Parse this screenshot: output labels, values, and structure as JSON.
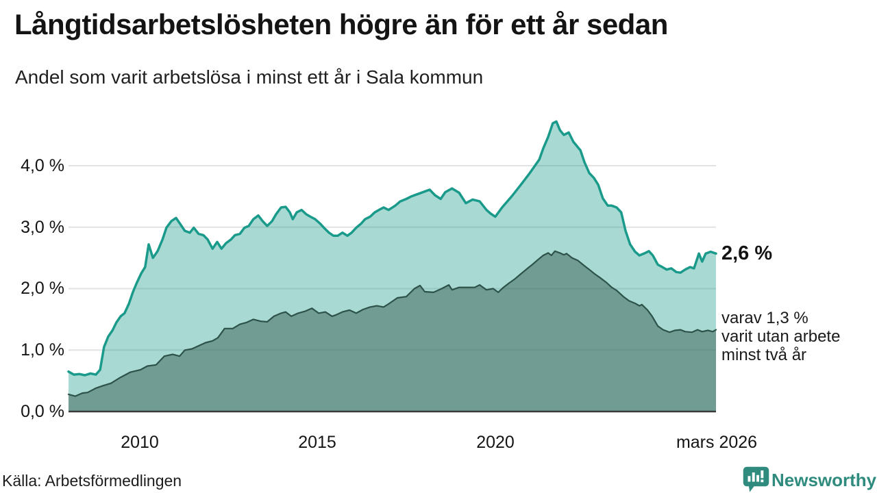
{
  "header": {
    "title": "Långtidsarbetslösheten högre än för ett år sedan",
    "subtitle": "Andel som varit arbetslösa i minst ett år i Sala kommun"
  },
  "colors": {
    "accent_line": "#1a9a8a",
    "accent_fill": "rgba(26,154,138,0.38)",
    "dark_line": "#2d5249",
    "dark_fill": "rgba(45,82,73,0.45)",
    "gridline": "#e2e2e2",
    "axis_line": "#3a3a3a",
    "brand_teal": "#2e8b7e"
  },
  "chart_data": {
    "type": "area",
    "title": "Långtidsarbetslösheten högre än för ett år sedan",
    "subtitle": "Andel som varit arbetslösa i minst ett år i Sala kommun",
    "unit": "%",
    "grid": true,
    "legend": "none",
    "x_range": [
      2008.0,
      2026.25
    ],
    "ylim": [
      0,
      4.9
    ],
    "y_axis": {
      "ticks": [
        {
          "label": "4,0 %",
          "value": 4
        },
        {
          "label": "3,0 %",
          "value": 3
        },
        {
          "label": "2,0 %",
          "value": 2
        },
        {
          "label": "1,0 %",
          "value": 1
        },
        {
          "label": "0,0 %",
          "value": 0
        }
      ]
    },
    "x_axis": {
      "ticks": [
        {
          "label": "2010",
          "x": 2010
        },
        {
          "label": "2015",
          "x": 2015
        },
        {
          "label": "2020",
          "x": 2020
        },
        {
          "label": "mars 2026",
          "x": 2026.25
        }
      ]
    },
    "annotations": {
      "end_value": "2,6 %",
      "sub_lines": [
        "varav 1,3 %",
        "varit utan arbete",
        "minst två år"
      ]
    },
    "series": [
      {
        "name": "Andel arbetslösa minst ett år",
        "stroke": "#1a9a8a",
        "stroke_width": 3.5,
        "fill": "rgba(26,154,138,0.38)",
        "points": [
          [
            2008.0,
            0.65
          ],
          [
            2008.15,
            0.6
          ],
          [
            2008.31,
            0.61
          ],
          [
            2008.46,
            0.59
          ],
          [
            2008.62,
            0.62
          ],
          [
            2008.77,
            0.6
          ],
          [
            2008.89,
            0.68
          ],
          [
            2009.0,
            1.05
          ],
          [
            2009.12,
            1.22
          ],
          [
            2009.24,
            1.32
          ],
          [
            2009.35,
            1.45
          ],
          [
            2009.47,
            1.55
          ],
          [
            2009.58,
            1.6
          ],
          [
            2009.7,
            1.75
          ],
          [
            2009.82,
            1.95
          ],
          [
            2009.93,
            2.1
          ],
          [
            2010.05,
            2.25
          ],
          [
            2010.16,
            2.35
          ],
          [
            2010.26,
            2.72
          ],
          [
            2010.38,
            2.5
          ],
          [
            2010.51,
            2.61
          ],
          [
            2010.65,
            2.8
          ],
          [
            2010.76,
            2.99
          ],
          [
            2010.9,
            3.1
          ],
          [
            2011.03,
            3.15
          ],
          [
            2011.15,
            3.05
          ],
          [
            2011.28,
            2.94
          ],
          [
            2011.42,
            2.91
          ],
          [
            2011.53,
            2.99
          ],
          [
            2011.67,
            2.89
          ],
          [
            2011.8,
            2.87
          ],
          [
            2011.92,
            2.8
          ],
          [
            2012.06,
            2.65
          ],
          [
            2012.19,
            2.76
          ],
          [
            2012.31,
            2.65
          ],
          [
            2012.44,
            2.74
          ],
          [
            2012.58,
            2.8
          ],
          [
            2012.69,
            2.87
          ],
          [
            2012.83,
            2.89
          ],
          [
            2012.96,
            2.99
          ],
          [
            2013.08,
            3.02
          ],
          [
            2013.21,
            3.13
          ],
          [
            2013.35,
            3.19
          ],
          [
            2013.47,
            3.1
          ],
          [
            2013.6,
            3.02
          ],
          [
            2013.74,
            3.1
          ],
          [
            2013.85,
            3.21
          ],
          [
            2013.99,
            3.32
          ],
          [
            2014.12,
            3.33
          ],
          [
            2014.24,
            3.24
          ],
          [
            2014.32,
            3.13
          ],
          [
            2014.43,
            3.24
          ],
          [
            2014.57,
            3.28
          ],
          [
            2014.7,
            3.21
          ],
          [
            2014.82,
            3.17
          ],
          [
            2014.95,
            3.13
          ],
          [
            2015.09,
            3.06
          ],
          [
            2015.2,
            2.99
          ],
          [
            2015.34,
            2.91
          ],
          [
            2015.47,
            2.86
          ],
          [
            2015.59,
            2.86
          ],
          [
            2015.72,
            2.91
          ],
          [
            2015.86,
            2.86
          ],
          [
            2015.98,
            2.91
          ],
          [
            2016.11,
            2.99
          ],
          [
            2016.25,
            3.06
          ],
          [
            2016.36,
            3.13
          ],
          [
            2016.5,
            3.17
          ],
          [
            2016.63,
            3.24
          ],
          [
            2016.75,
            3.28
          ],
          [
            2016.88,
            3.32
          ],
          [
            2017.02,
            3.28
          ],
          [
            2017.21,
            3.35
          ],
          [
            2017.35,
            3.42
          ],
          [
            2017.52,
            3.46
          ],
          [
            2017.66,
            3.5
          ],
          [
            2017.85,
            3.54
          ],
          [
            2018.04,
            3.58
          ],
          [
            2018.18,
            3.61
          ],
          [
            2018.33,
            3.52
          ],
          [
            2018.49,
            3.46
          ],
          [
            2018.62,
            3.57
          ],
          [
            2018.81,
            3.63
          ],
          [
            2019.01,
            3.56
          ],
          [
            2019.2,
            3.39
          ],
          [
            2019.39,
            3.45
          ],
          [
            2019.59,
            3.42
          ],
          [
            2019.78,
            3.28
          ],
          [
            2019.9,
            3.22
          ],
          [
            2020.03,
            3.17
          ],
          [
            2020.22,
            3.32
          ],
          [
            2020.49,
            3.5
          ],
          [
            2020.75,
            3.69
          ],
          [
            2021.0,
            3.88
          ],
          [
            2021.27,
            4.1
          ],
          [
            2021.38,
            4.28
          ],
          [
            2021.52,
            4.47
          ],
          [
            2021.65,
            4.69
          ],
          [
            2021.75,
            4.72
          ],
          [
            2021.85,
            4.58
          ],
          [
            2021.96,
            4.5
          ],
          [
            2022.1,
            4.54
          ],
          [
            2022.23,
            4.39
          ],
          [
            2022.43,
            4.25
          ],
          [
            2022.54,
            4.06
          ],
          [
            2022.68,
            3.88
          ],
          [
            2022.81,
            3.8
          ],
          [
            2022.93,
            3.69
          ],
          [
            2023.06,
            3.47
          ],
          [
            2023.2,
            3.35
          ],
          [
            2023.31,
            3.35
          ],
          [
            2023.45,
            3.32
          ],
          [
            2023.58,
            3.24
          ],
          [
            2023.7,
            2.94
          ],
          [
            2023.83,
            2.72
          ],
          [
            2023.97,
            2.6
          ],
          [
            2024.09,
            2.54
          ],
          [
            2024.22,
            2.57
          ],
          [
            2024.36,
            2.61
          ],
          [
            2024.47,
            2.54
          ],
          [
            2024.61,
            2.39
          ],
          [
            2024.74,
            2.35
          ],
          [
            2024.86,
            2.31
          ],
          [
            2024.99,
            2.33
          ],
          [
            2025.13,
            2.27
          ],
          [
            2025.25,
            2.26
          ],
          [
            2025.38,
            2.31
          ],
          [
            2025.52,
            2.35
          ],
          [
            2025.63,
            2.33
          ],
          [
            2025.77,
            2.57
          ],
          [
            2025.86,
            2.44
          ],
          [
            2025.96,
            2.57
          ],
          [
            2026.1,
            2.6
          ],
          [
            2026.25,
            2.57
          ]
        ]
      },
      {
        "name": "Andel arbetslösa minst två år",
        "stroke": "#2d5249",
        "stroke_width": 2.2,
        "fill": "rgba(45,82,73,0.45)",
        "points": [
          [
            2008.0,
            0.28
          ],
          [
            2008.19,
            0.25
          ],
          [
            2008.39,
            0.3
          ],
          [
            2008.54,
            0.31
          ],
          [
            2008.77,
            0.38
          ],
          [
            2008.97,
            0.42
          ],
          [
            2009.2,
            0.46
          ],
          [
            2009.45,
            0.55
          ],
          [
            2009.74,
            0.64
          ],
          [
            2010.03,
            0.68
          ],
          [
            2010.22,
            0.74
          ],
          [
            2010.47,
            0.76
          ],
          [
            2010.7,
            0.9
          ],
          [
            2010.94,
            0.93
          ],
          [
            2011.13,
            0.9
          ],
          [
            2011.28,
            1.0
          ],
          [
            2011.48,
            1.02
          ],
          [
            2011.67,
            1.07
          ],
          [
            2011.86,
            1.12
          ],
          [
            2012.06,
            1.15
          ],
          [
            2012.21,
            1.2
          ],
          [
            2012.4,
            1.35
          ],
          [
            2012.63,
            1.35
          ],
          [
            2012.83,
            1.42
          ],
          [
            2013.02,
            1.45
          ],
          [
            2013.21,
            1.5
          ],
          [
            2013.41,
            1.47
          ],
          [
            2013.6,
            1.46
          ],
          [
            2013.79,
            1.55
          ],
          [
            2013.99,
            1.6
          ],
          [
            2014.12,
            1.62
          ],
          [
            2014.28,
            1.55
          ],
          [
            2014.47,
            1.6
          ],
          [
            2014.66,
            1.63
          ],
          [
            2014.86,
            1.68
          ],
          [
            2015.05,
            1.6
          ],
          [
            2015.24,
            1.62
          ],
          [
            2015.43,
            1.55
          ],
          [
            2015.53,
            1.57
          ],
          [
            2015.72,
            1.62
          ],
          [
            2015.92,
            1.65
          ],
          [
            2016.11,
            1.6
          ],
          [
            2016.3,
            1.66
          ],
          [
            2016.5,
            1.7
          ],
          [
            2016.69,
            1.72
          ],
          [
            2016.88,
            1.7
          ],
          [
            2017.02,
            1.75
          ],
          [
            2017.27,
            1.85
          ],
          [
            2017.52,
            1.87
          ],
          [
            2017.75,
            2.0
          ],
          [
            2017.91,
            2.05
          ],
          [
            2018.04,
            1.95
          ],
          [
            2018.29,
            1.94
          ],
          [
            2018.52,
            2.0
          ],
          [
            2018.72,
            2.06
          ],
          [
            2018.81,
            1.98
          ],
          [
            2019.01,
            2.02
          ],
          [
            2019.2,
            2.02
          ],
          [
            2019.45,
            2.02
          ],
          [
            2019.59,
            2.06
          ],
          [
            2019.78,
            1.98
          ],
          [
            2019.97,
            2.0
          ],
          [
            2020.11,
            1.94
          ],
          [
            2020.26,
            2.02
          ],
          [
            2020.42,
            2.09
          ],
          [
            2020.59,
            2.16
          ],
          [
            2020.75,
            2.24
          ],
          [
            2020.94,
            2.33
          ],
          [
            2021.07,
            2.39
          ],
          [
            2021.23,
            2.47
          ],
          [
            2021.38,
            2.54
          ],
          [
            2021.52,
            2.58
          ],
          [
            2021.61,
            2.54
          ],
          [
            2021.71,
            2.61
          ],
          [
            2021.85,
            2.58
          ],
          [
            2021.96,
            2.55
          ],
          [
            2022.04,
            2.57
          ],
          [
            2022.19,
            2.5
          ],
          [
            2022.35,
            2.46
          ],
          [
            2022.52,
            2.38
          ],
          [
            2022.68,
            2.31
          ],
          [
            2022.83,
            2.24
          ],
          [
            2023.0,
            2.17
          ],
          [
            2023.16,
            2.1
          ],
          [
            2023.31,
            2.02
          ],
          [
            2023.45,
            1.97
          ],
          [
            2023.64,
            1.87
          ],
          [
            2023.8,
            1.8
          ],
          [
            2023.97,
            1.76
          ],
          [
            2024.09,
            1.72
          ],
          [
            2024.16,
            1.74
          ],
          [
            2024.32,
            1.65
          ],
          [
            2024.45,
            1.55
          ],
          [
            2024.61,
            1.39
          ],
          [
            2024.76,
            1.33
          ],
          [
            2024.94,
            1.29
          ],
          [
            2025.09,
            1.32
          ],
          [
            2025.25,
            1.33
          ],
          [
            2025.38,
            1.3
          ],
          [
            2025.57,
            1.29
          ],
          [
            2025.73,
            1.33
          ],
          [
            2025.86,
            1.3
          ],
          [
            2026.02,
            1.32
          ],
          [
            2026.16,
            1.3
          ],
          [
            2026.25,
            1.33
          ]
        ]
      }
    ]
  },
  "footer": {
    "source": "Källa: Arbetsförmedlingen",
    "brand": "Newsworthy"
  }
}
